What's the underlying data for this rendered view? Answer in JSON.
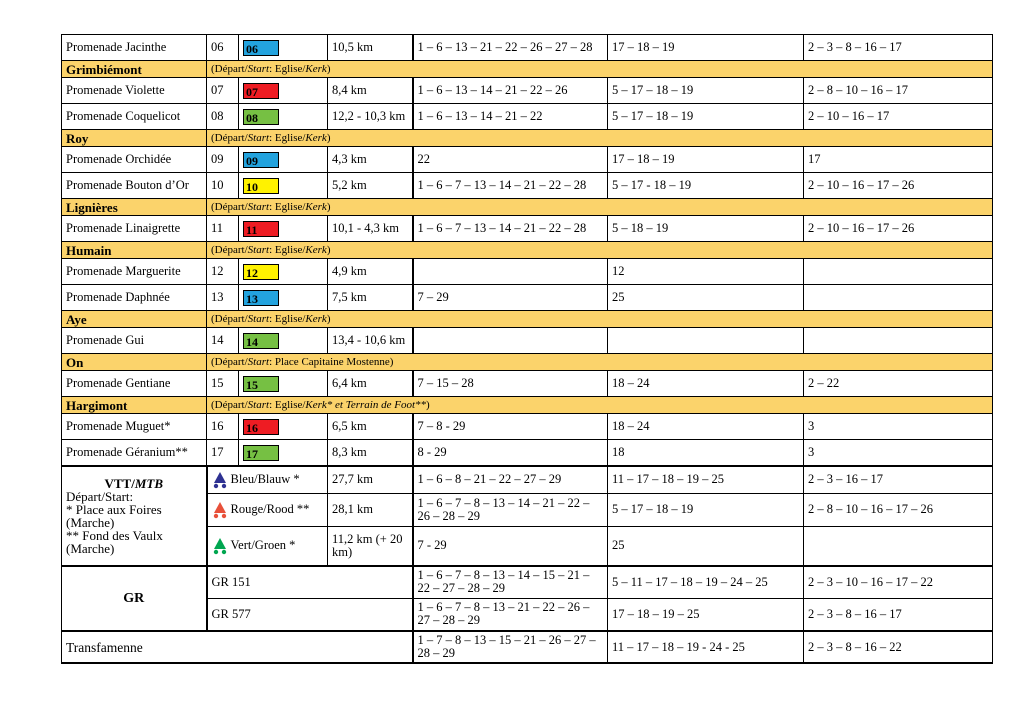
{
  "rows": {
    "jacinthe": {
      "name": "Promenade Jacinthe",
      "num": "06",
      "code": "06",
      "dist": "10,5 km",
      "c1": "1 – 6 – 13 – 21 – 22  – 26 – 27 – 28",
      "c2": "17 – 18 – 19",
      "c3": "2 – 3 – 8 – 16 – 17"
    },
    "violette": {
      "name": "Promenade Violette",
      "num": "07",
      "code": "07",
      "dist": "8,4 km",
      "c1": "1 – 6 – 13 – 14 – 21 – 22 – 26",
      "c2": "5 – 17 – 18 – 19",
      "c3": "2 – 8 – 10 – 16 – 17"
    },
    "coquelicot": {
      "name": "Promenade Coquelicot",
      "num": "08",
      "code": "08",
      "dist": "12,2 - 10,3 km",
      "c1": "1 – 6 – 13 – 14 – 21 – 22",
      "c2": "5 – 17 – 18 – 19",
      "c3": "2 – 10 – 16 – 17"
    },
    "orchidee": {
      "name": "Promenade Orchidée",
      "num": "09",
      "code": "09",
      "dist": "4,3 km",
      "c1": "22",
      "c2": "17 – 18 – 19",
      "c3": "17"
    },
    "bouton": {
      "name": "Promenade Bouton d’Or",
      "num": "10",
      "code": "10",
      "dist": "5,2 km",
      "c1": "1 – 6 – 7 – 13 – 14 – 21 – 22 – 28",
      "c2": "5 – 17 - 18 – 19",
      "c3": "2 – 10 – 16 – 17 – 26"
    },
    "linaigrette": {
      "name": "Promenade Linaigrette",
      "num": "11",
      "code": "11",
      "dist": "10,1 - 4,3 km",
      "c1": "1 – 6 – 7 – 13 – 14 – 21 – 22 – 28",
      "c2": "5 – 18 – 19",
      "c3": "2 – 10 – 16 – 17 – 26"
    },
    "marguerite": {
      "name": "Promenade Marguerite",
      "num": "12",
      "code": "12",
      "dist": "4,9 km",
      "c1": "",
      "c2": "12",
      "c3": ""
    },
    "daphnee": {
      "name": "Promenade Daphnée",
      "num": "13",
      "code": "13",
      "dist": "7,5 km",
      "c1": "7 – 29",
      "c2": "25",
      "c3": ""
    },
    "gui": {
      "name": "Promenade Gui",
      "num": "14",
      "code": "14",
      "dist": "13,4 - 10,6 km",
      "c1": "",
      "c2": "",
      "c3": ""
    },
    "gentiane": {
      "name": "Promenade Gentiane",
      "num": "15",
      "code": "15",
      "dist": "6,4 km",
      "c1": "7 – 15 – 28",
      "c2": "18 – 24",
      "c3": "2 – 22"
    },
    "muguet": {
      "name": "Promenade Muguet*",
      "num": "16",
      "code": "16",
      "dist": "6,5 km",
      "c1": "7 – 8 - 29",
      "c2": "18 – 24",
      "c3": "3"
    },
    "geranium": {
      "name": "Promenade Géranium**",
      "num": "17",
      "code": "17",
      "dist": "8,3 km",
      "c1": "8 - 29",
      "c2": "18",
      "c3": "3"
    }
  },
  "sections": {
    "grimbiemont": {
      "name": "Grimbiémont",
      "pre": "(Départ/",
      "start": "Start",
      "mid": ": Eglise/",
      "kerk": "Kerk",
      "post": ")"
    },
    "roy": {
      "name": "Roy",
      "pre": "(Départ/",
      "start": "Start",
      "mid": ": Eglise/",
      "kerk": "Kerk",
      "post": ")"
    },
    "lignieres": {
      "name": "Lignières",
      "pre": "(Départ/",
      "start": "Start",
      "mid": ": Eglise/",
      "kerk": "Kerk",
      "post": ")"
    },
    "humain": {
      "name": "Humain",
      "pre": "(Départ/",
      "start": "Start",
      "mid": ": Eglise/",
      "kerk": "Kerk",
      "post": ")"
    },
    "aye": {
      "name": "Aye",
      "pre": "(Départ/",
      "start": "Start",
      "mid": ": Eglise/",
      "kerk": "Kerk",
      "post": ")"
    },
    "on": {
      "name": "On",
      "pre": "(Départ/",
      "start": "Start",
      "mid": ": Place Capitaine Mostenne)",
      "kerk": "",
      "post": ""
    },
    "hargimont": {
      "name": "Hargimont",
      "pre": "(Départ/",
      "start": "Start",
      "mid": ": Eglise/",
      "kerk": "Kerk* et Terrain de Foot**",
      "post": ")"
    }
  },
  "vtt": {
    "title_a": "VTT/",
    "title_b": "MTB",
    "dep": "Départ/Start:",
    "line1": "* Place aux Foires (Marche)",
    "line2": "** Fond des Vaulx (Marche)",
    "routes": [
      {
        "label": "Bleu/Blauw *",
        "dist": "27,7 km",
        "c1": "1 – 6 – 8 – 21 – 22 – 27 – 29",
        "c2": "11 – 17 – 18 – 19 – 25",
        "c3": "2 – 3 – 16 – 17",
        "color": "#2e3192"
      },
      {
        "label": "Rouge/Rood **",
        "dist": "28,1 km",
        "c1": "1 – 6 – 7 – 8 – 13 – 14 – 21 – 22 – 26 – 28 – 29",
        "c2": "5 – 17 – 18 – 19",
        "c3": "2 – 8 – 10 – 16 – 17 – 26",
        "color": "#e8503a"
      },
      {
        "label": "Vert/Groen *",
        "dist": "11,2 km (+ 20 km)",
        "c1": "7 - 29",
        "c2": "25",
        "c3": "",
        "color": "#00a650"
      }
    ]
  },
  "gr": {
    "title": "GR",
    "routes": [
      {
        "label": "GR 151",
        "c1": "1 – 6 – 7 – 8 – 13 – 14 – 15 – 21 – 22 – 27 – 28 – 29",
        "c2": "5 – 11 – 17 – 18 – 19 – 24 – 25",
        "c3": "2 – 3 – 10 – 16 – 17 – 22"
      },
      {
        "label": "GR 577",
        "c1": "1 – 6 – 7 – 8 – 13 – 21 – 22 – 26 – 27 – 28 – 29",
        "c2": "17 – 18 – 19 – 25",
        "c3": "2 – 3 – 8 – 16 – 17"
      }
    ]
  },
  "transfamenne": {
    "label": "Transfamenne",
    "c1": "1 – 7 – 8 – 13 – 15 – 21 – 26 – 27 – 28 – 29",
    "c2": "11 – 17 – 18 – 19 - 24 - 25",
    "c3": "2 – 3 – 8 – 16 – 22"
  }
}
